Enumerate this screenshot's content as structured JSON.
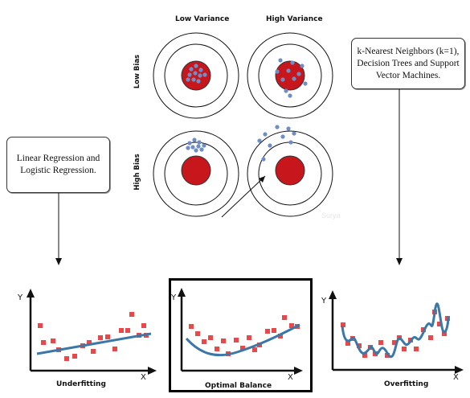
{
  "targets": {
    "col_low_variance": "Low Variance",
    "col_high_variance": "High Variance",
    "row_low_bias": "Low Bias",
    "row_high_bias": "High Bias",
    "watermark": "Surya"
  },
  "callouts": {
    "left": "Linear Regression and Logistic Regression.",
    "right": "k-Nearest Neighbors (k=1), Decision Trees and Support Vector Machines."
  },
  "plots": {
    "underfitting": {
      "label": "Underfitting",
      "y_axis": "Y",
      "x_axis": "X"
    },
    "optimal": {
      "label": "Optimal Balance",
      "y_axis": "Y",
      "x_axis": "X"
    },
    "overfitting": {
      "label": "Overfitting",
      "y_axis": "Y",
      "x_axis": "X"
    }
  },
  "colors": {
    "bullseye": "#c8161d",
    "dot": "#6f8fc4",
    "scatter": "#e8484a",
    "fit_line": "#3b78a8",
    "frame": "#000000"
  }
}
